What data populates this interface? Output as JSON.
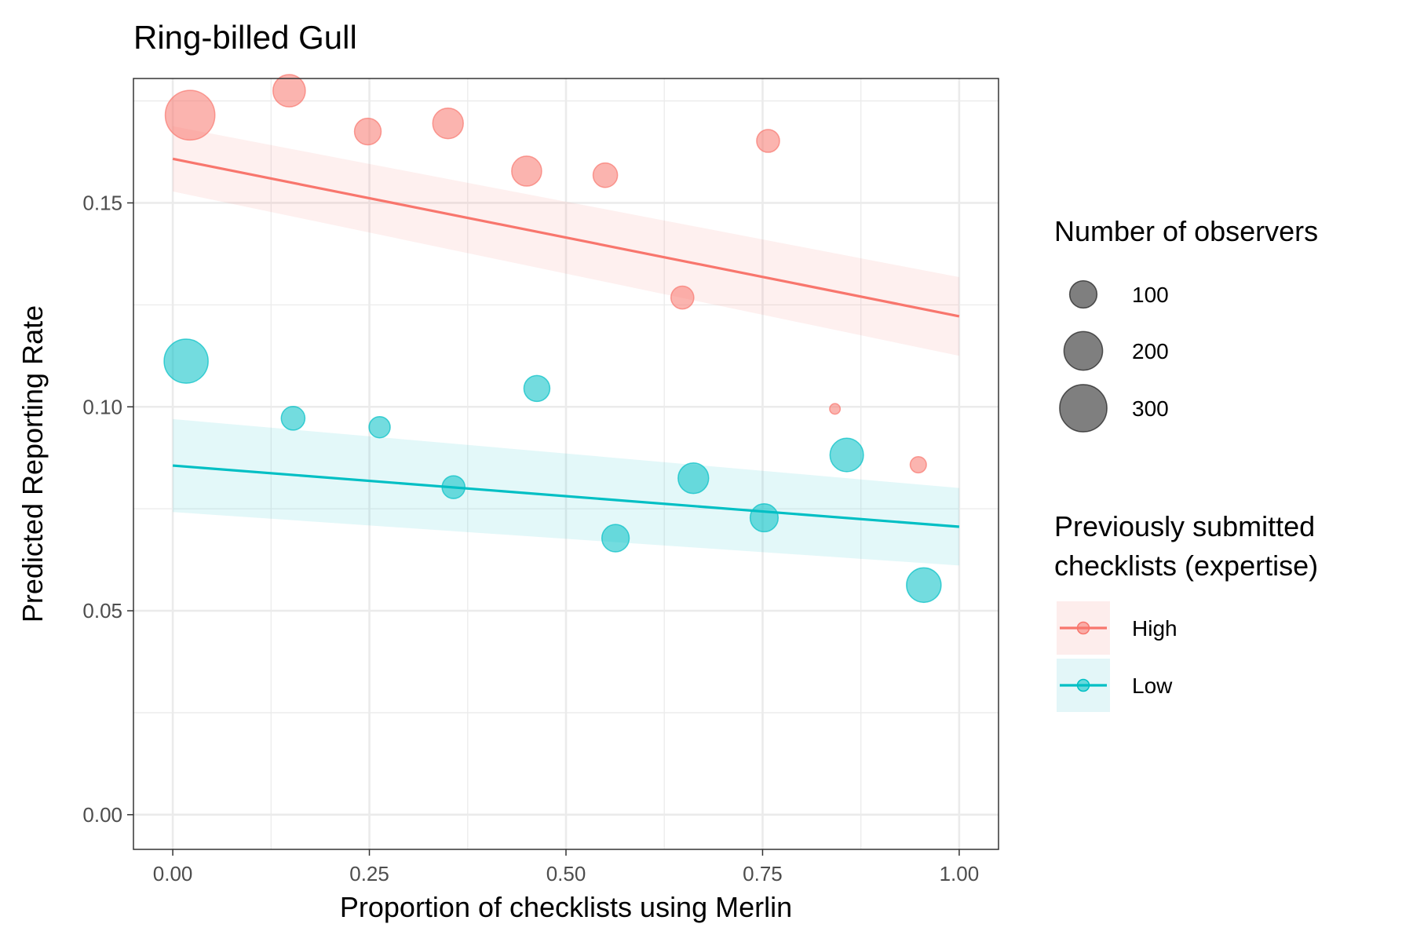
{
  "chart_data": {
    "type": "scatter",
    "title": "Ring-billed Gull",
    "xlabel": "Proportion of checklists using Merlin",
    "ylabel": "Predicted Reporting Rate",
    "xlim": [
      -0.05,
      1.05
    ],
    "ylim": [
      -0.0085,
      0.1805
    ],
    "x_ticks": [
      0.0,
      0.25,
      0.5,
      0.75,
      1.0
    ],
    "x_tick_labels": [
      "0.00",
      "0.25",
      "0.50",
      "0.75",
      "1.00"
    ],
    "y_ticks": [
      0.0,
      0.05,
      0.1,
      0.15
    ],
    "y_tick_labels": [
      "0.00",
      "0.05",
      "0.10",
      "0.15"
    ],
    "grid": true,
    "series": [
      {
        "name": "High",
        "color": "#F8766D",
        "points": [
          {
            "x": 0.022,
            "y": 0.1715,
            "n": 330
          },
          {
            "x": 0.148,
            "y": 0.1775,
            "n": 140
          },
          {
            "x": 0.248,
            "y": 0.1675,
            "n": 95
          },
          {
            "x": 0.35,
            "y": 0.1695,
            "n": 125
          },
          {
            "x": 0.45,
            "y": 0.1578,
            "n": 120
          },
          {
            "x": 0.55,
            "y": 0.1568,
            "n": 80
          },
          {
            "x": 0.648,
            "y": 0.1268,
            "n": 70
          },
          {
            "x": 0.757,
            "y": 0.1652,
            "n": 70
          },
          {
            "x": 0.842,
            "y": 0.0995,
            "n": 15
          },
          {
            "x": 0.948,
            "y": 0.0858,
            "n": 35
          }
        ],
        "fit": {
          "x": [
            0.0,
            1.0
          ],
          "y": [
            0.1608,
            0.1222
          ]
        },
        "ci": {
          "x": [
            0.0,
            1.0
          ],
          "lower": [
            0.1528,
            0.1125
          ],
          "upper": [
            0.1688,
            0.1318
          ]
        }
      },
      {
        "name": "Low",
        "color": "#00BFC4",
        "points": [
          {
            "x": 0.017,
            "y": 0.1112,
            "n": 260
          },
          {
            "x": 0.153,
            "y": 0.0972,
            "n": 75
          },
          {
            "x": 0.263,
            "y": 0.095,
            "n": 60
          },
          {
            "x": 0.357,
            "y": 0.0803,
            "n": 70
          },
          {
            "x": 0.463,
            "y": 0.1045,
            "n": 90
          },
          {
            "x": 0.563,
            "y": 0.0678,
            "n": 100
          },
          {
            "x": 0.662,
            "y": 0.0825,
            "n": 125
          },
          {
            "x": 0.752,
            "y": 0.0728,
            "n": 105
          },
          {
            "x": 0.857,
            "y": 0.0882,
            "n": 150
          },
          {
            "x": 0.955,
            "y": 0.0563,
            "n": 160
          }
        ],
        "fit": {
          "x": [
            0.0,
            1.0
          ],
          "y": [
            0.0856,
            0.0706
          ]
        },
        "ci": {
          "x": [
            0.0,
            1.0
          ],
          "lower": [
            0.0742,
            0.0611
          ],
          "upper": [
            0.097,
            0.0801
          ]
        }
      }
    ]
  },
  "legend": {
    "size": {
      "title": "Number of observers",
      "entries": [
        {
          "label": "100",
          "n": 100
        },
        {
          "label": "200",
          "n": 200
        },
        {
          "label": "300",
          "n": 300
        }
      ]
    },
    "color": {
      "title_line1": "Previously submitted",
      "title_line2": "checklists (expertise)",
      "entries": [
        {
          "label": "High",
          "color": "#F8766D",
          "fill": "#FDEDEC"
        },
        {
          "label": "Low",
          "color": "#00BFC4",
          "fill": "#E3F6F8"
        }
      ]
    }
  }
}
